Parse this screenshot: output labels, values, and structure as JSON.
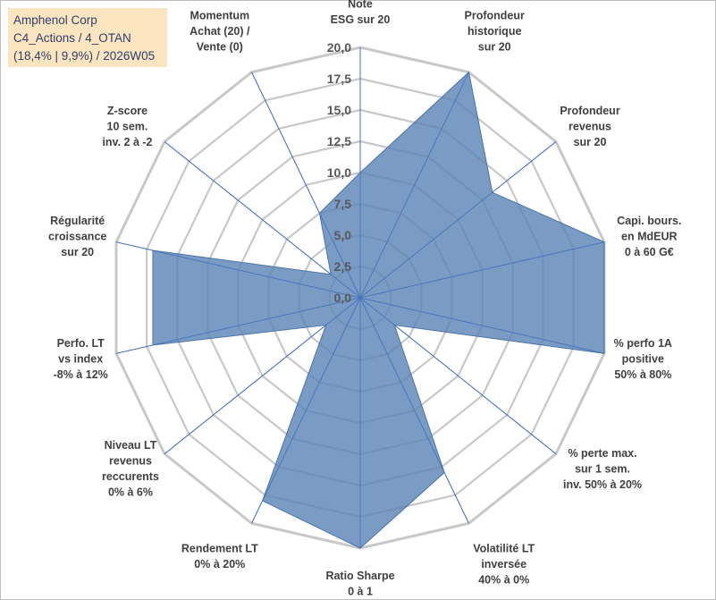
{
  "title_lines": [
    "Amphenol Corp",
    "C4_Actions / 4_OTAN",
    "(18,4% | 9,9%) / 2026W05"
  ],
  "chart_data": {
    "type": "radar",
    "title": "Amphenol Corp",
    "rmin": 0,
    "rmax": 20,
    "ticks": [
      "0,0",
      "2,5",
      "5,0",
      "7,5",
      "10,0",
      "12,5",
      "15,0",
      "17,5",
      "20,0"
    ],
    "tick_values": [
      0,
      2.5,
      5,
      7.5,
      10,
      12.5,
      15,
      17.5,
      20
    ],
    "axes": [
      {
        "label": [
          "Note",
          "ESG sur 20"
        ],
        "value": 10
      },
      {
        "label": [
          "Profondeur",
          "historique",
          "sur 20"
        ],
        "value": 20
      },
      {
        "label": [
          "Profondeur",
          "revenus",
          "sur 20"
        ],
        "value": 13.5
      },
      {
        "label": [
          "Capi. bours.",
          "en MdEUR",
          "0 à 60 G€"
        ],
        "value": 20
      },
      {
        "label": [
          "% perfo 1A",
          "positive",
          "50% à 80%"
        ],
        "value": 20
      },
      {
        "label": [
          "% perte max.",
          "sur 1 sem.",
          "inv. 50% à 20%"
        ],
        "value": 3.5
      },
      {
        "label": [
          "Volatilité LT",
          "inversée",
          "40% à 0%"
        ],
        "value": 15.5
      },
      {
        "label": [
          "Ratio Sharpe",
          "0 à 1"
        ],
        "value": 20
      },
      {
        "label": [
          "Rendement LT",
          "0% à 20%"
        ],
        "value": 18
      },
      {
        "label": [
          "Niveau LT",
          "revenus",
          "reccurents",
          "0% à 6%"
        ],
        "value": 3.5
      },
      {
        "label": [
          "Perfo. LT",
          "vs index",
          "-8% à 12%"
        ],
        "value": 17
      },
      {
        "label": [
          "Régularité",
          "croissance",
          "sur 20"
        ],
        "value": 17
      },
      {
        "label": [
          "Z-score",
          "10 sem.",
          "inv. 2 à -2"
        ],
        "value": 3
      },
      {
        "label": [
          "Momentum",
          "Achat (20) /",
          "Vente (0)"
        ],
        "value": 7.5
      }
    ],
    "series_color": "#5b85b7",
    "grid_color": "#c8c8c8"
  }
}
